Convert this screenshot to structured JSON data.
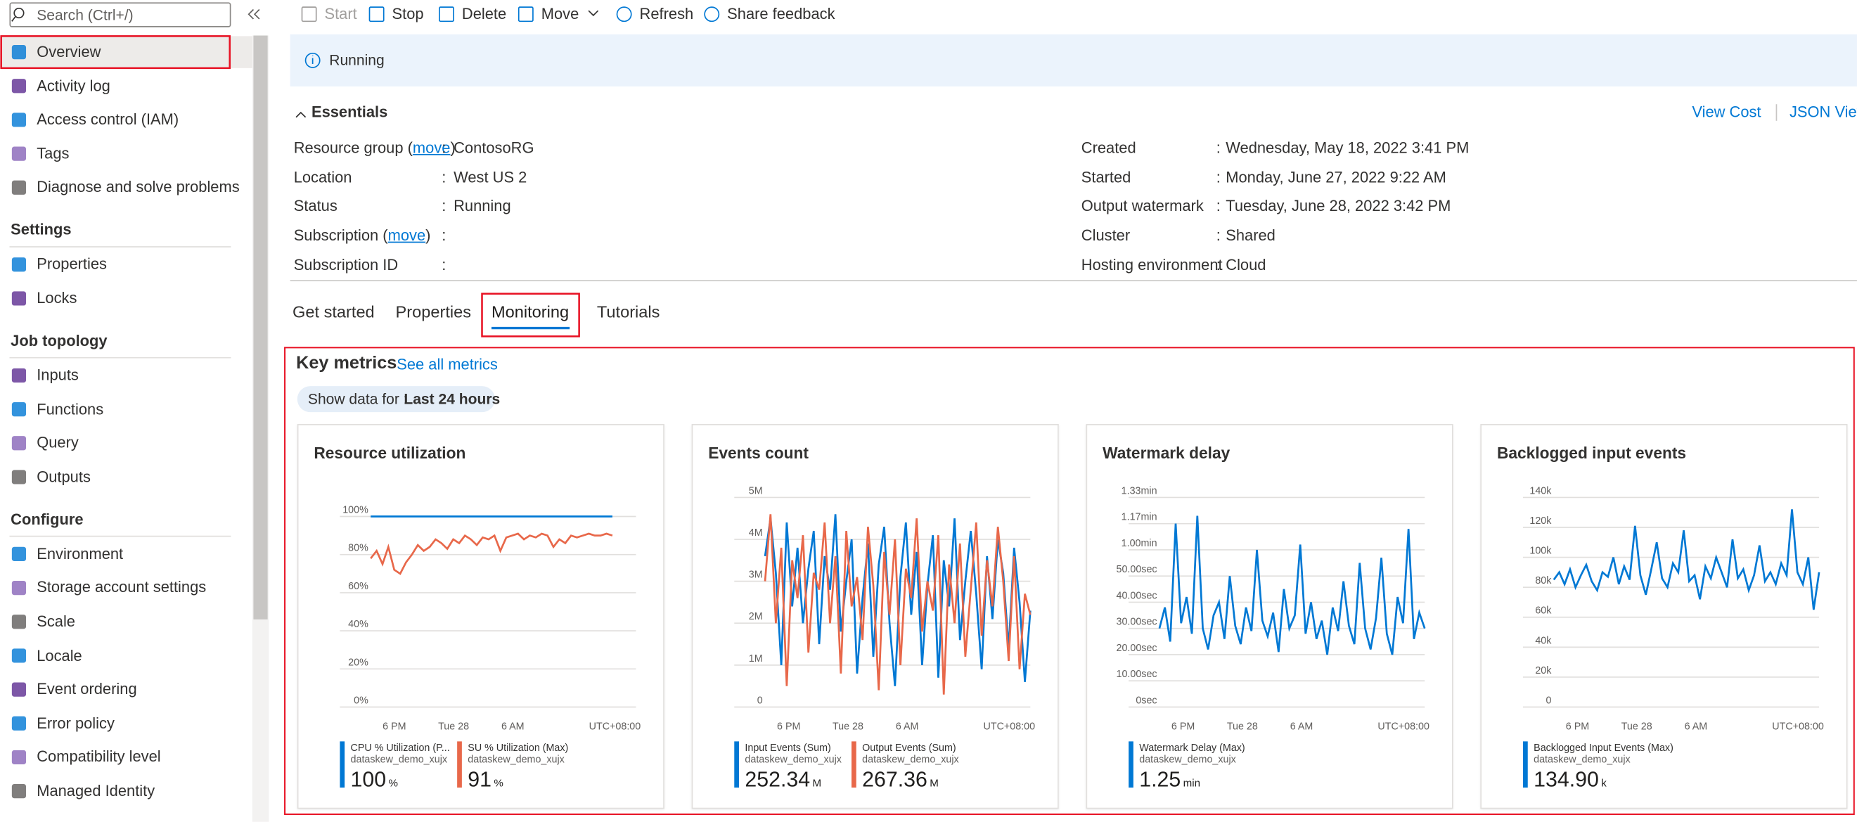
{
  "sidebar": {
    "search_placeholder": "Search (Ctrl+/)",
    "items": [
      "Overview",
      "Activity log",
      "Access control (IAM)",
      "Tags",
      "Diagnose and solve problems"
    ],
    "sections": [
      {
        "title": "Settings",
        "items": [
          "Properties",
          "Locks"
        ]
      },
      {
        "title": "Job topology",
        "items": [
          "Inputs",
          "Functions",
          "Query",
          "Outputs"
        ]
      },
      {
        "title": "Configure",
        "items": [
          "Environment",
          "Storage account settings",
          "Scale",
          "Locale",
          "Event ordering",
          "Error policy",
          "Compatibility level",
          "Managed Identity"
        ]
      }
    ]
  },
  "toolbar": [
    "Start",
    "Stop",
    "Delete",
    "Move",
    "Refresh",
    "Share feedback"
  ],
  "status_banner": "Running",
  "essentials": {
    "title": "Essentials",
    "links": [
      "View Cost",
      "JSON View"
    ],
    "separator": ":",
    "left": [
      {
        "label": "Resource group (",
        "link": "move",
        "label_end": ")",
        "value": "ContosoRG"
      },
      {
        "label": "Location",
        "value": "West US 2"
      },
      {
        "label": "Status",
        "value": "Running"
      },
      {
        "label": "Subscription (",
        "link": "move",
        "label_end": ")"
      },
      {
        "label": "Subscription ID"
      }
    ],
    "right": [
      {
        "label": "Created",
        "value": "Wednesday, May 18, 2022 3:41 PM"
      },
      {
        "label": "Started",
        "value": "Monday, June 27, 2022 9:22 AM"
      },
      {
        "label": "Output watermark",
        "value": "Tuesday, June 28, 2022 3:42 PM"
      },
      {
        "label": "Cluster",
        "value": "Shared"
      },
      {
        "label": "Hosting environment",
        "value": "Cloud"
      }
    ]
  },
  "tabs": [
    "Get started",
    "Properties",
    "Monitoring",
    "Tutorials"
  ],
  "key_metrics": {
    "title": "Key metrics",
    "link": "See all metrics",
    "show_data_for": {
      "label": "Show data for :",
      "value": "Last 24 hours"
    }
  },
  "chart_data": [
    {
      "type": "line",
      "title": "Resource utilization",
      "ylim": [
        0,
        110
      ],
      "yticks": [
        {
          "value": 0,
          "label": "0%"
        },
        {
          "value": 20,
          "label": "20%"
        },
        {
          "value": 40,
          "label": "40%"
        },
        {
          "value": 60,
          "label": "60%"
        },
        {
          "value": 80,
          "label": "80%"
        },
        {
          "value": 100,
          "label": "100%"
        }
      ],
      "xtick_labels": [
        "6 PM",
        "Tue 28",
        "6 AM"
      ],
      "timezone": "UTC+08:00",
      "grid": true,
      "series": [
        {
          "name": "CPU % Utilization (P...",
          "resource": "dataskew_demo_xujx",
          "total": "100",
          "unit": "%",
          "color": "#0078d4",
          "values": [
            100,
            100,
            100,
            100,
            100,
            100,
            100,
            100,
            100,
            100,
            100,
            100,
            100,
            100,
            100,
            100,
            100,
            100,
            100,
            100,
            100,
            100,
            100,
            100,
            100,
            100,
            100,
            100,
            100,
            100,
            100,
            100,
            100,
            100,
            100,
            100,
            100,
            100,
            100,
            100,
            100,
            100,
            null,
            null,
            null,
            null
          ]
        },
        {
          "name": "SU % Utilization (Max)",
          "resource": "dataskew_demo_xujx",
          "total": "91",
          "unit": "%",
          "color": "#e8684a",
          "values": [
            78,
            82,
            75,
            84,
            72,
            70,
            76,
            80,
            85,
            82,
            84,
            88,
            86,
            83,
            88,
            86,
            90,
            88,
            85,
            89,
            88,
            90,
            82,
            89,
            90,
            91,
            88,
            90,
            89,
            91,
            90,
            84,
            88,
            86,
            90,
            89,
            90,
            91,
            90,
            90,
            91,
            90,
            null,
            null,
            null,
            null
          ]
        }
      ]
    },
    {
      "type": "line",
      "title": "Events count",
      "ylim": [
        0,
        5
      ],
      "yticks": [
        0,
        {
          "value": 1,
          "label": "1M"
        },
        {
          "value": 2,
          "label": "2M"
        },
        {
          "value": 3,
          "label": "3M"
        },
        {
          "value": 4,
          "label": "4M"
        },
        {
          "value": 5,
          "label": "5M"
        }
      ],
      "xtick_labels": [
        "6 PM",
        "Tue 28",
        "6 AM"
      ],
      "timezone": "UTC+08:00",
      "grid": true,
      "series": [
        {
          "name": "Input Events (Sum)",
          "resource": "dataskew_demo_xujx",
          "total": "252.34",
          "unit": "M",
          "color": "#0078d4",
          "values": [
            3.6,
            4.5,
            3.2,
            1.0,
            4.4,
            2.4,
            3.8,
            2.0,
            3.3,
            4.2,
            1.5,
            3.6,
            2.8,
            4.6,
            1.8,
            3.0,
            4.0,
            0.8,
            2.6,
            3.9,
            1.2,
            3.4,
            4.3,
            2.0,
            0.5,
            3.1,
            4.4,
            2.2,
            3.7,
            1.0,
            2.9,
            4.1,
            0.7,
            3.5,
            2.4,
            4.5,
            1.6,
            3.0,
            4.2,
            2.7,
            0.9,
            3.6,
            2.1,
            4.0,
            3.2,
            1.4,
            3.8,
            2.5,
            0.6,
            2.3
          ]
        },
        {
          "name": "Output Events (Sum)",
          "resource": "dataskew_demo_xujx",
          "total": "267.36",
          "unit": "M",
          "color": "#e8684a",
          "values": [
            3.0,
            4.6,
            2.0,
            3.8,
            0.5,
            3.5,
            2.6,
            4.1,
            1.3,
            3.2,
            2.8,
            4.4,
            2.0,
            3.6,
            0.8,
            4.2,
            2.4,
            3.1,
            1.6,
            4.3,
            2.9,
            0.4,
            3.7,
            2.2,
            4.0,
            1.0,
            3.3,
            2.6,
            4.5,
            1.8,
            3.0,
            2.3,
            4.1,
            0.3,
            3.4,
            2.0,
            3.9,
            1.2,
            2.8,
            4.4,
            1.7,
            3.5,
            2.4,
            4.3,
            3.0,
            1.1,
            3.6,
            0.9,
            2.7,
            2.2
          ]
        }
      ]
    },
    {
      "type": "line",
      "title": "Watermark delay",
      "ylim": [
        0,
        80
      ],
      "yticks": [
        {
          "value": 0,
          "label": "0sec"
        },
        {
          "value": 10,
          "label": "10.00sec"
        },
        {
          "value": 20,
          "label": "20.00sec"
        },
        {
          "value": 30,
          "label": "30.00sec"
        },
        {
          "value": 40,
          "label": "40.00sec"
        },
        {
          "value": 50,
          "label": "50.00sec"
        },
        {
          "value": 60,
          "label": "1.00min"
        },
        {
          "value": 70,
          "label": "1.17min"
        },
        {
          "value": 80,
          "label": "1.33min"
        }
      ],
      "xtick_labels": [
        "6 PM",
        "Tue 28",
        "6 AM"
      ],
      "timezone": "UTC+08:00",
      "grid": true,
      "series": [
        {
          "name": "Watermark Delay (Max)",
          "resource": "dataskew_demo_xujx",
          "total": "1.25",
          "unit": "min",
          "color": "#0078d4",
          "values": [
            30,
            38,
            25,
            70,
            32,
            42,
            28,
            73,
            30,
            22,
            35,
            40,
            26,
            50,
            31,
            24,
            38,
            29,
            60,
            33,
            27,
            36,
            21,
            45,
            30,
            35,
            62,
            28,
            40,
            26,
            33,
            20,
            38,
            29,
            48,
            31,
            24,
            55,
            30,
            22,
            34,
            57,
            28,
            20,
            42,
            32,
            68,
            26,
            36,
            30
          ]
        }
      ]
    },
    {
      "type": "line",
      "title": "Backlogged input events",
      "ylim": [
        0,
        140
      ],
      "yticks": [
        0,
        {
          "value": 20,
          "label": "20k"
        },
        {
          "value": 40,
          "label": "40k"
        },
        {
          "value": 60,
          "label": "60k"
        },
        {
          "value": 80,
          "label": "80k"
        },
        {
          "value": 100,
          "label": "100k"
        },
        {
          "value": 120,
          "label": "120k"
        },
        {
          "value": 140,
          "label": "140k"
        }
      ],
      "xtick_labels": [
        "6 PM",
        "Tue 28",
        "6 AM"
      ],
      "timezone": "UTC+08:00",
      "grid": true,
      "series": [
        {
          "name": "Backlogged Input Events (Max)",
          "resource": "dataskew_demo_xujx",
          "total": "134.90",
          "unit": "k",
          "color": "#0078d4",
          "values": [
            85,
            90,
            82,
            92,
            80,
            88,
            95,
            84,
            78,
            90,
            87,
            100,
            82,
            94,
            85,
            121,
            88,
            75,
            92,
            110,
            86,
            80,
            96,
            90,
            118,
            84,
            88,
            72,
            94,
            86,
            100,
            90,
            80,
            112,
            86,
            92,
            78,
            88,
            108,
            84,
            90,
            82,
            96,
            88,
            132,
            90,
            82,
            100,
            65,
            90
          ]
        }
      ]
    }
  ]
}
